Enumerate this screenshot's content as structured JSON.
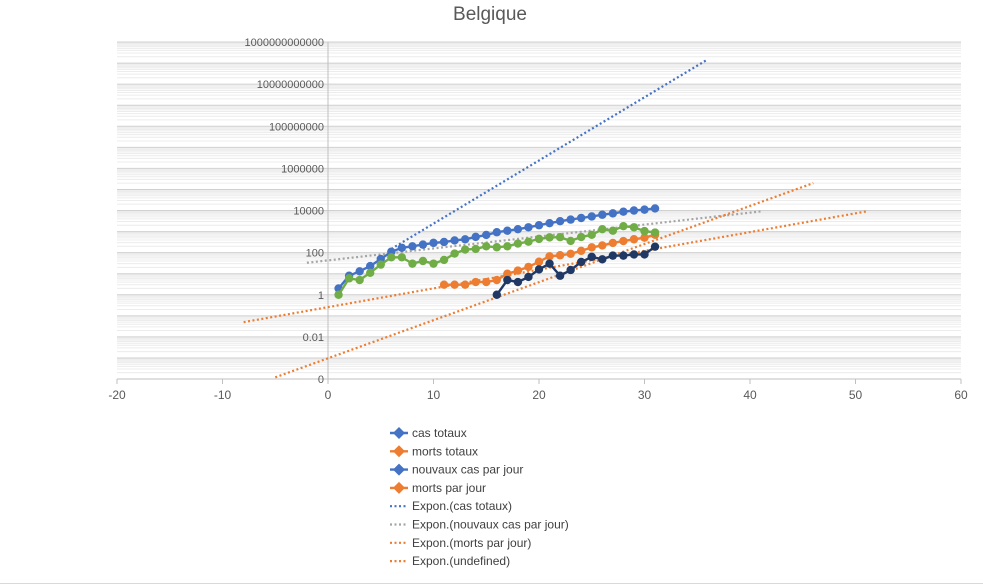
{
  "chart_data": {
    "type": "scatter",
    "title": "Belgique",
    "x_axis": {
      "min": -20,
      "max": 60,
      "ticks": [
        -20,
        -10,
        0,
        10,
        20,
        30,
        40,
        50,
        60
      ]
    },
    "y_axis": {
      "scale": "log",
      "min": 0.0001,
      "max": 1000000000000,
      "tick_values": [
        0.0001,
        0.01,
        1,
        100,
        10000,
        1000000,
        100000000,
        10000000000,
        1000000000000
      ],
      "tick_labels": [
        "0",
        "0.01",
        "1",
        "100",
        "10000",
        "1000000",
        "100000000",
        "10000000000",
        "1000000000000"
      ]
    },
    "grid": true,
    "legend_position": "bottom",
    "series": [
      {
        "name": "cas totaux",
        "kind": "markers",
        "color": "#4472c4",
        "x": [
          1,
          2,
          3,
          4,
          5,
          6,
          7,
          8,
          9,
          10,
          11,
          12,
          13,
          14,
          15,
          16,
          17,
          18,
          19,
          20,
          21,
          22,
          23,
          24,
          25,
          26,
          27,
          28,
          29,
          30,
          31
        ],
        "y": [
          2,
          8,
          13,
          23,
          50,
          110,
          170,
          200,
          240,
          290,
          320,
          380,
          430,
          560,
          690,
          930,
          1100,
          1300,
          1600,
          2000,
          2500,
          3100,
          3700,
          4400,
          5200,
          6300,
          7300,
          8800,
          10000,
          11000,
          12500
        ]
      },
      {
        "name": "morts totaux",
        "kind": "markers",
        "color": "#ed7d31",
        "x": [
          11,
          12,
          13,
          14,
          15,
          16,
          17,
          18,
          19,
          20,
          21,
          22,
          23,
          24,
          25,
          26,
          27,
          28,
          29,
          30,
          31
        ],
        "y": [
          3,
          3,
          3,
          4,
          4,
          5,
          10,
          14,
          21,
          37,
          67,
          75,
          88,
          122,
          178,
          220,
          289,
          353,
          431,
          513,
          705
        ]
      },
      {
        "name": "nouveaux cas par jour",
        "kind": "markers",
        "color": "#70ad47",
        "x": [
          1,
          2,
          3,
          4,
          5,
          6,
          7,
          8,
          9,
          10,
          11,
          12,
          13,
          14,
          15,
          16,
          17,
          18,
          19,
          20,
          21,
          22,
          23,
          24,
          25,
          26,
          27,
          28,
          29,
          30,
          31
        ],
        "y": [
          1,
          6,
          5,
          11,
          27,
          60,
          60,
          30,
          40,
          30,
          45,
          90,
          140,
          150,
          200,
          180,
          200,
          270,
          330,
          450,
          530,
          540,
          360,
          550,
          700,
          1300,
          1100,
          1800,
          1600,
          1050,
          900
        ]
      },
      {
        "name": "morts par jour",
        "kind": "markers",
        "color": "#203864",
        "x": [
          16,
          17,
          18,
          19,
          20,
          21,
          22,
          23,
          24,
          25,
          26,
          27,
          28,
          29,
          30,
          31
        ],
        "y": [
          1,
          5,
          4,
          7,
          16,
          30,
          8,
          15,
          36,
          63,
          48,
          72,
          72,
          82,
          82,
          192
        ]
      },
      {
        "name": "Expon.(cas totaux)",
        "kind": "trendline",
        "color": "#4472c4",
        "x": [
          6,
          36
        ],
        "y": [
          150,
          150000000000
        ]
      },
      {
        "name": "Expon.(nouvaux cas par jour)",
        "kind": "trendline",
        "color": "#a5a5a5",
        "x": [
          -2,
          41
        ],
        "y": [
          33,
          9000
        ]
      },
      {
        "name": "Expon.(morts par jour)",
        "kind": "trendline",
        "color": "#ed7d31",
        "x": [
          -5,
          46
        ],
        "y": [
          0.00012,
          200000
        ]
      },
      {
        "name": "Expon.(undefined)",
        "kind": "trendline",
        "color": "#ed7d31",
        "x": [
          -8,
          51
        ],
        "y": [
          0.05,
          9000
        ]
      }
    ],
    "legend": [
      {
        "label": "cas totaux",
        "marker": "diamond",
        "color": "#4472c4"
      },
      {
        "label": "morts totaux",
        "marker": "diamond",
        "color": "#ed7d31"
      },
      {
        "label": "nouvaux cas par jour",
        "marker": "diamond",
        "color": "#4472c4"
      },
      {
        "label": "morts par jour",
        "marker": "diamond",
        "color": "#ed7d31"
      },
      {
        "label": "Expon.(cas totaux)",
        "marker": "dotted",
        "color": "#4472c4"
      },
      {
        "label": "Expon.(nouvaux cas par jour)",
        "marker": "dotted",
        "color": "#a5a5a5"
      },
      {
        "label": "Expon.(morts par jour)",
        "marker": "dotted",
        "color": "#ed7d31"
      },
      {
        "label": "Expon.(undefined)",
        "marker": "dotted",
        "color": "#ed7d31"
      }
    ]
  }
}
